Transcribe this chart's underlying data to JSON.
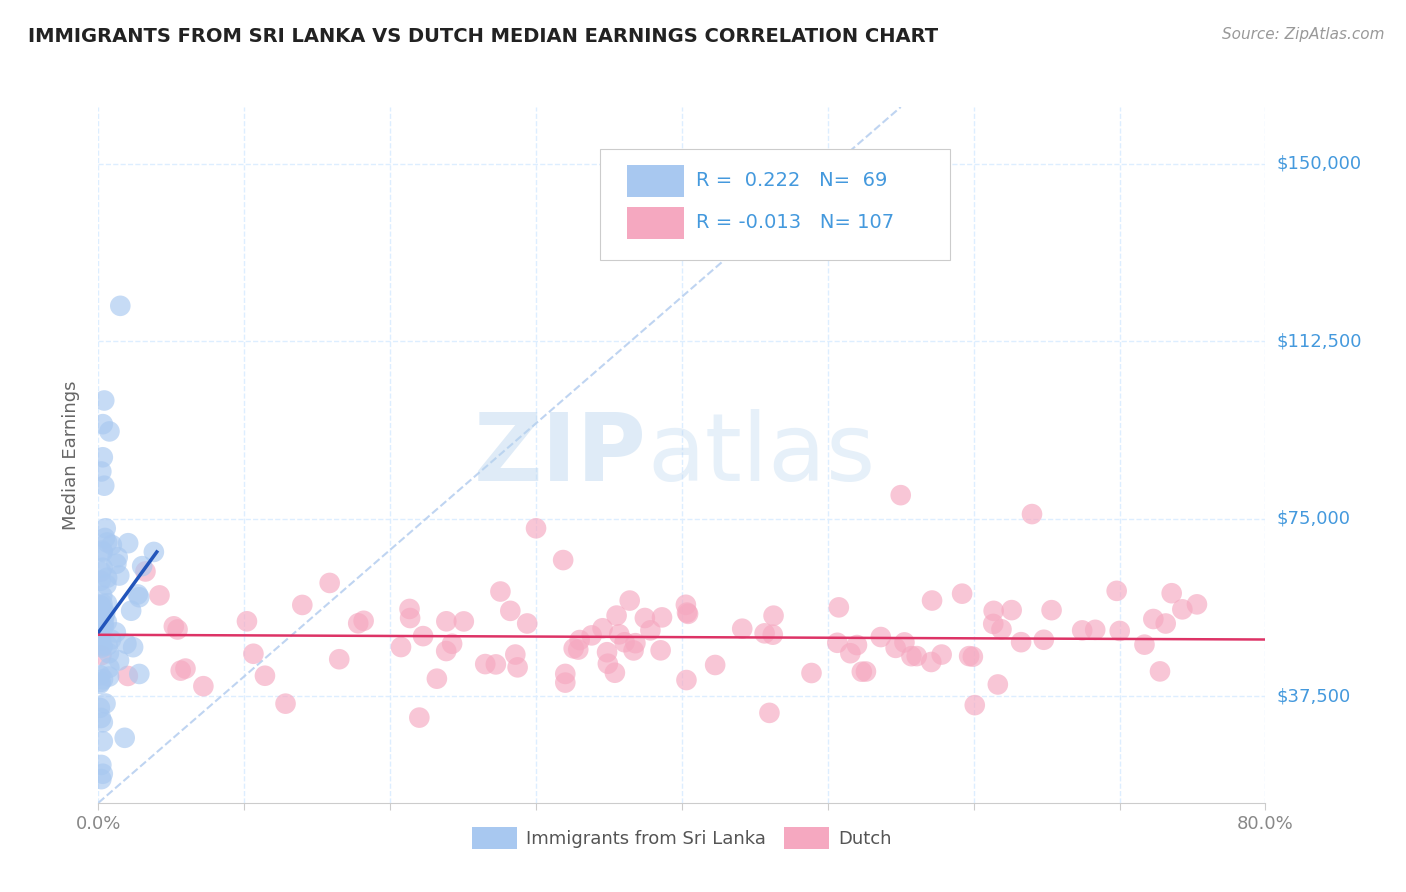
{
  "title": "IMMIGRANTS FROM SRI LANKA VS DUTCH MEDIAN EARNINGS CORRELATION CHART",
  "source_text": "Source: ZipAtlas.com",
  "ylabel": "Median Earnings",
  "xlim": [
    0.0,
    0.8
  ],
  "ylim": [
    15000,
    162000
  ],
  "yticks": [
    37500,
    75000,
    112500,
    150000
  ],
  "ytick_labels": [
    "$37,500",
    "$75,000",
    "$112,500",
    "$150,000"
  ],
  "xticks": [
    0.0,
    0.1,
    0.2,
    0.3,
    0.4,
    0.5,
    0.6,
    0.7,
    0.8
  ],
  "blue_R": 0.222,
  "blue_N": 69,
  "pink_R": -0.013,
  "pink_N": 107,
  "blue_color": "#A8C8F0",
  "pink_color": "#F5A8C0",
  "blue_line_color": "#2255BB",
  "pink_line_color": "#DD3366",
  "diag_line_color": "#B8D0F0",
  "legend_label_blue": "Immigrants from Sri Lanka",
  "legend_label_pink": "Dutch",
  "watermark_zip": "ZIP",
  "watermark_atlas": "atlas",
  "background_color": "#FFFFFF",
  "grid_color": "#DDEEFF",
  "title_color": "#222222",
  "ytick_color": "#4499DD",
  "source_color": "#999999",
  "xtick_label_color": "#888888"
}
